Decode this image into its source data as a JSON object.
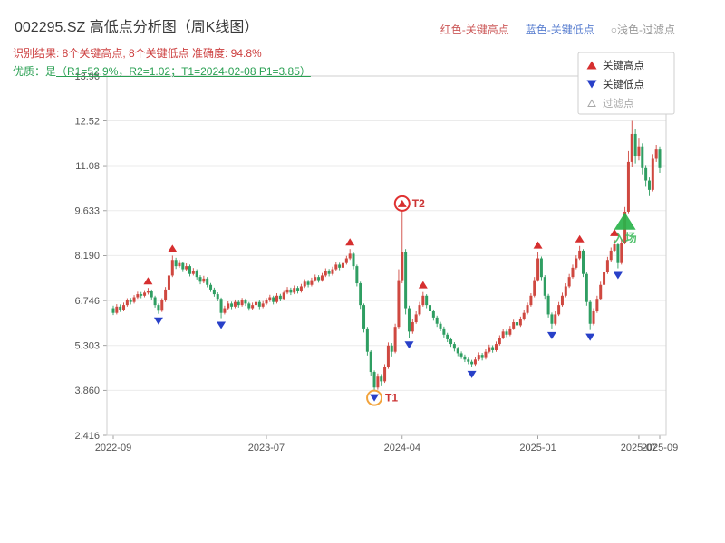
{
  "header": {
    "legend_inline": [
      {
        "label": "红色-关键高点",
        "color": "#cc5a5a"
      },
      {
        "label": "蓝色-关键低点",
        "color": "#5a7fd0"
      },
      {
        "label": "○浅色-过滤点",
        "color": "#9a9a9a"
      }
    ],
    "result_line": "识别结果: 8个关键高点, 8个关键低点  准确度: 94.8%",
    "quality_prefix": "优质：是",
    "quality_detail": "（R1=52.9%，R2=1.02；T1=2024-02-08 P1=3.85）"
  },
  "chart_data": {
    "type": "candlestick",
    "title": "002295.SZ 高低点分析图（周K线图）",
    "symbol": "002295.SZ",
    "period": "周K线",
    "ylim": [
      2.416,
      13.96
    ],
    "y_ticks": [
      "13.96",
      "12.52",
      "11.08",
      "9.633",
      "8.190",
      "6.746",
      "5.303",
      "3.860",
      "2.416"
    ],
    "x_ticks": [
      {
        "label": "2022-09",
        "index": 0
      },
      {
        "label": "2023-07",
        "index": 44
      },
      {
        "label": "2024-04",
        "index": 83
      },
      {
        "label": "2025-01",
        "index": 122
      },
      {
        "label": "2025-07",
        "index": 151
      },
      {
        "label": "2025-09",
        "index": 157
      }
    ],
    "grid": "horizontal",
    "legend_position": "upper-right",
    "colors": {
      "up": "#cf4840",
      "down": "#2f9e62",
      "key_high": "#d62f2f",
      "key_low": "#2840c8",
      "filtered": "#a8a8a8",
      "entry": "#29b34a",
      "t1_circle": "#f2a33c",
      "t2_circle": "#e03131",
      "label": "#cc3333"
    },
    "legend": {
      "items": [
        {
          "label": "关键高点",
          "type": "up"
        },
        {
          "label": "关键低点",
          "type": "down"
        },
        {
          "label": "过滤点",
          "type": "filtered"
        }
      ]
    },
    "key_highs": [
      {
        "index": 10
      },
      {
        "index": 17
      },
      {
        "index": 68
      },
      {
        "index": 83,
        "label": "T2",
        "circled": true
      },
      {
        "index": 89
      },
      {
        "index": 122
      },
      {
        "index": 134
      },
      {
        "index": 144
      }
    ],
    "key_lows": [
      {
        "index": 13
      },
      {
        "index": 31
      },
      {
        "index": 75,
        "label": "T1",
        "circled": true
      },
      {
        "index": 85
      },
      {
        "index": 103
      },
      {
        "index": 126
      },
      {
        "index": 137
      },
      {
        "index": 145
      }
    ],
    "entry_marker": {
      "index": 147,
      "price": 9.3,
      "label": "入场"
    },
    "candles": [
      [
        6.5,
        6.58,
        6.28,
        6.35
      ],
      [
        6.35,
        6.63,
        6.3,
        6.55
      ],
      [
        6.55,
        6.62,
        6.38,
        6.45
      ],
      [
        6.45,
        6.68,
        6.4,
        6.6
      ],
      [
        6.6,
        6.82,
        6.55,
        6.75
      ],
      [
        6.75,
        6.83,
        6.62,
        6.7
      ],
      [
        6.7,
        6.92,
        6.65,
        6.85
      ],
      [
        6.85,
        7.03,
        6.8,
        6.95
      ],
      [
        6.95,
        7.02,
        6.82,
        6.9
      ],
      [
        6.9,
        7.08,
        6.85,
        7.0
      ],
      [
        7.0,
        7.15,
        6.94,
        7.05
      ],
      [
        7.05,
        7.1,
        6.78,
        6.85
      ],
      [
        6.85,
        6.9,
        6.52,
        6.6
      ],
      [
        6.6,
        6.65,
        6.32,
        6.42
      ],
      [
        6.42,
        6.82,
        6.38,
        6.75
      ],
      [
        6.75,
        7.18,
        6.7,
        7.1
      ],
      [
        7.1,
        7.63,
        7.05,
        7.55
      ],
      [
        7.55,
        8.19,
        7.5,
        8.05
      ],
      [
        8.05,
        8.12,
        7.76,
        7.85
      ],
      [
        7.85,
        8.05,
        7.8,
        7.95
      ],
      [
        7.95,
        8.0,
        7.66,
        7.75
      ],
      [
        7.75,
        7.94,
        7.7,
        7.85
      ],
      [
        7.85,
        7.9,
        7.52,
        7.6
      ],
      [
        7.6,
        7.79,
        7.55,
        7.7
      ],
      [
        7.7,
        7.75,
        7.42,
        7.5
      ],
      [
        7.5,
        7.56,
        7.27,
        7.35
      ],
      [
        7.35,
        7.54,
        7.3,
        7.45
      ],
      [
        7.45,
        7.5,
        7.17,
        7.25
      ],
      [
        7.25,
        7.31,
        7.02,
        7.1
      ],
      [
        7.1,
        7.16,
        6.87,
        6.95
      ],
      [
        6.95,
        7.01,
        6.72,
        6.8
      ],
      [
        6.8,
        6.84,
        6.18,
        6.35
      ],
      [
        6.35,
        6.58,
        6.3,
        6.5
      ],
      [
        6.5,
        6.72,
        6.45,
        6.65
      ],
      [
        6.65,
        6.71,
        6.47,
        6.55
      ],
      [
        6.55,
        6.78,
        6.5,
        6.7
      ],
      [
        6.7,
        6.76,
        6.52,
        6.6
      ],
      [
        6.6,
        6.83,
        6.55,
        6.75
      ],
      [
        6.75,
        6.81,
        6.57,
        6.65
      ],
      [
        6.65,
        6.7,
        6.42,
        6.5
      ],
      [
        6.5,
        6.68,
        6.45,
        6.6
      ],
      [
        6.6,
        6.78,
        6.55,
        6.7
      ],
      [
        6.7,
        6.75,
        6.47,
        6.55
      ],
      [
        6.55,
        6.73,
        6.5,
        6.65
      ],
      [
        6.65,
        6.83,
        6.6,
        6.75
      ],
      [
        6.75,
        6.93,
        6.7,
        6.85
      ],
      [
        6.85,
        6.9,
        6.62,
        6.7
      ],
      [
        6.7,
        6.98,
        6.65,
        6.9
      ],
      [
        6.9,
        6.96,
        6.72,
        6.8
      ],
      [
        6.8,
        7.08,
        6.75,
        7.0
      ],
      [
        7.0,
        7.18,
        6.95,
        7.1
      ],
      [
        7.1,
        7.16,
        6.92,
        7.0
      ],
      [
        7.0,
        7.23,
        6.95,
        7.15
      ],
      [
        7.15,
        7.21,
        6.97,
        7.05
      ],
      [
        7.05,
        7.28,
        7.0,
        7.2
      ],
      [
        7.2,
        7.43,
        7.15,
        7.35
      ],
      [
        7.35,
        7.41,
        7.17,
        7.25
      ],
      [
        7.25,
        7.48,
        7.2,
        7.4
      ],
      [
        7.4,
        7.58,
        7.35,
        7.5
      ],
      [
        7.5,
        7.56,
        7.32,
        7.4
      ],
      [
        7.4,
        7.63,
        7.35,
        7.55
      ],
      [
        7.55,
        7.78,
        7.5,
        7.7
      ],
      [
        7.7,
        7.76,
        7.52,
        7.6
      ],
      [
        7.6,
        7.83,
        7.55,
        7.75
      ],
      [
        7.75,
        7.98,
        7.7,
        7.9
      ],
      [
        7.9,
        7.96,
        7.72,
        7.8
      ],
      [
        7.8,
        8.03,
        7.75,
        7.95
      ],
      [
        7.95,
        8.18,
        7.9,
        8.1
      ],
      [
        8.1,
        8.4,
        8.05,
        8.25
      ],
      [
        8.25,
        8.3,
        7.75,
        7.85
      ],
      [
        7.85,
        7.9,
        7.2,
        7.3
      ],
      [
        7.3,
        7.35,
        6.48,
        6.6
      ],
      [
        6.6,
        6.65,
        5.72,
        5.85
      ],
      [
        5.85,
        5.9,
        4.98,
        5.1
      ],
      [
        5.1,
        5.15,
        4.32,
        4.45
      ],
      [
        4.45,
        4.5,
        3.85,
        3.95
      ],
      [
        3.95,
        4.4,
        3.88,
        4.3
      ],
      [
        4.3,
        4.38,
        4.02,
        4.15
      ],
      [
        4.15,
        4.7,
        4.1,
        4.6
      ],
      [
        4.6,
        5.4,
        4.55,
        5.3
      ],
      [
        5.3,
        5.38,
        4.95,
        5.1
      ],
      [
        5.1,
        6.0,
        5.05,
        5.9
      ],
      [
        5.9,
        7.75,
        5.85,
        7.4
      ],
      [
        7.4,
        9.63,
        7.3,
        8.3
      ],
      [
        8.3,
        8.4,
        6.3,
        6.5
      ],
      [
        6.5,
        6.58,
        5.55,
        5.75
      ],
      [
        5.75,
        6.15,
        5.68,
        6.05
      ],
      [
        6.05,
        6.4,
        6.0,
        6.3
      ],
      [
        6.3,
        6.7,
        6.25,
        6.6
      ],
      [
        6.6,
        7.02,
        6.55,
        6.9
      ],
      [
        6.9,
        6.95,
        6.5,
        6.6
      ],
      [
        6.6,
        6.66,
        6.3,
        6.4
      ],
      [
        6.4,
        6.46,
        6.1,
        6.2
      ],
      [
        6.2,
        6.26,
        5.9,
        6.0
      ],
      [
        6.0,
        6.06,
        5.76,
        5.85
      ],
      [
        5.85,
        5.91,
        5.56,
        5.65
      ],
      [
        5.65,
        5.71,
        5.41,
        5.5
      ],
      [
        5.5,
        5.56,
        5.26,
        5.35
      ],
      [
        5.35,
        5.41,
        5.11,
        5.2
      ],
      [
        5.2,
        5.26,
        4.96,
        5.05
      ],
      [
        5.05,
        5.11,
        4.87,
        4.95
      ],
      [
        4.95,
        5.01,
        4.77,
        4.85
      ],
      [
        4.85,
        4.91,
        4.7,
        4.78
      ],
      [
        4.78,
        4.84,
        4.6,
        4.7
      ],
      [
        4.7,
        4.93,
        4.65,
        4.85
      ],
      [
        4.85,
        5.08,
        4.8,
        5.0
      ],
      [
        5.0,
        5.06,
        4.82,
        4.9
      ],
      [
        4.9,
        5.18,
        4.85,
        5.1
      ],
      [
        5.1,
        5.33,
        5.05,
        5.25
      ],
      [
        5.25,
        5.31,
        5.07,
        5.15
      ],
      [
        5.15,
        5.43,
        5.1,
        5.35
      ],
      [
        5.35,
        5.63,
        5.3,
        5.55
      ],
      [
        5.55,
        5.83,
        5.5,
        5.75
      ],
      [
        5.75,
        5.81,
        5.57,
        5.65
      ],
      [
        5.65,
        5.93,
        5.6,
        5.85
      ],
      [
        5.85,
        6.13,
        5.8,
        6.05
      ],
      [
        6.05,
        6.11,
        5.87,
        5.95
      ],
      [
        5.95,
        6.23,
        5.9,
        6.15
      ],
      [
        6.15,
        6.43,
        6.1,
        6.35
      ],
      [
        6.35,
        6.68,
        6.3,
        6.6
      ],
      [
        6.6,
        6.98,
        6.55,
        6.9
      ],
      [
        6.9,
        7.5,
        6.85,
        7.4
      ],
      [
        7.4,
        8.3,
        7.35,
        8.1
      ],
      [
        8.1,
        8.16,
        7.4,
        7.5
      ],
      [
        7.5,
        7.56,
        6.8,
        6.9
      ],
      [
        6.9,
        6.96,
        6.2,
        6.3
      ],
      [
        6.3,
        6.36,
        5.85,
        6.0
      ],
      [
        6.0,
        6.4,
        5.95,
        6.3
      ],
      [
        6.3,
        6.7,
        6.25,
        6.6
      ],
      [
        6.6,
        7.0,
        6.55,
        6.9
      ],
      [
        6.9,
        7.3,
        6.85,
        7.2
      ],
      [
        7.2,
        7.6,
        7.15,
        7.5
      ],
      [
        7.5,
        7.9,
        7.45,
        7.8
      ],
      [
        7.8,
        8.2,
        7.75,
        8.1
      ],
      [
        8.1,
        8.5,
        8.05,
        8.35
      ],
      [
        8.35,
        8.4,
        7.5,
        7.6
      ],
      [
        7.6,
        7.65,
        6.58,
        6.7
      ],
      [
        6.7,
        6.75,
        5.8,
        6.0
      ],
      [
        6.0,
        6.5,
        5.95,
        6.4
      ],
      [
        6.4,
        6.9,
        6.35,
        6.8
      ],
      [
        6.8,
        7.35,
        6.75,
        7.25
      ],
      [
        7.25,
        7.75,
        7.2,
        7.65
      ],
      [
        7.65,
        8.15,
        7.6,
        8.05
      ],
      [
        8.05,
        8.45,
        8.0,
        8.35
      ],
      [
        8.35,
        8.7,
        8.3,
        8.55
      ],
      [
        8.55,
        8.6,
        7.78,
        7.95
      ],
      [
        7.95,
        8.72,
        7.9,
        8.6
      ],
      [
        8.6,
        9.75,
        8.55,
        9.6
      ],
      [
        9.6,
        11.55,
        9.55,
        11.2
      ],
      [
        11.2,
        12.52,
        11.05,
        12.1
      ],
      [
        12.1,
        12.25,
        11.15,
        11.4
      ],
      [
        11.4,
        11.95,
        11.25,
        11.7
      ],
      [
        11.7,
        11.8,
        10.8,
        11.0
      ],
      [
        11.0,
        11.1,
        10.4,
        10.6
      ],
      [
        10.6,
        10.7,
        10.1,
        10.3
      ],
      [
        10.3,
        11.45,
        10.25,
        11.3
      ],
      [
        11.3,
        11.75,
        11.2,
        11.6
      ],
      [
        11.6,
        11.7,
        10.85,
        11.0
      ]
    ]
  }
}
